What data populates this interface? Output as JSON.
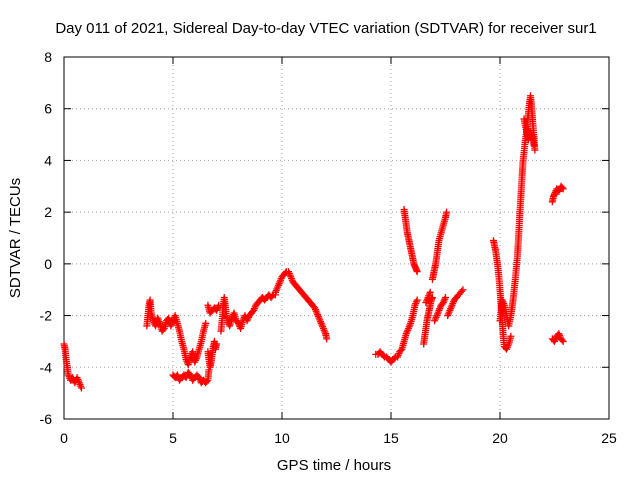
{
  "chart_data": {
    "type": "scatter",
    "title": "Day 011 of 2021, Sidereal Day-to-day VTEC variation (SDTVAR) for receiver sur1",
    "xlabel": "GPS time / hours",
    "ylabel": "SDTVAR / TECUs",
    "xlim": [
      0,
      25
    ],
    "ylim": [
      -6,
      8
    ],
    "xticks": [
      0,
      5,
      10,
      15,
      20,
      25
    ],
    "yticks": [
      -6,
      -4,
      -2,
      0,
      2,
      4,
      6,
      8
    ],
    "grid": true,
    "marker": "+",
    "series": [
      {
        "name": "SDTVAR",
        "color": "#ff0000",
        "segments": [
          [
            [
              0.0,
              -3.1
            ],
            [
              0.05,
              -3.3
            ],
            [
              0.1,
              -3.7
            ],
            [
              0.15,
              -4.0
            ],
            [
              0.2,
              -4.3
            ],
            [
              0.3,
              -4.5
            ],
            [
              0.4,
              -4.4
            ],
            [
              0.5,
              -4.6
            ],
            [
              0.6,
              -4.4
            ],
            [
              0.7,
              -4.6
            ],
            [
              0.8,
              -4.8
            ]
          ],
          [
            [
              3.8,
              -2.4
            ],
            [
              3.85,
              -2.0
            ],
            [
              3.9,
              -1.6
            ],
            [
              3.95,
              -1.4
            ],
            [
              4.0,
              -1.9
            ],
            [
              4.1,
              -2.2
            ],
            [
              4.2,
              -2.4
            ],
            [
              4.3,
              -2.1
            ],
            [
              4.4,
              -2.3
            ],
            [
              4.5,
              -2.6
            ],
            [
              4.6,
              -2.5
            ],
            [
              4.7,
              -2.2
            ],
            [
              4.8,
              -2.1
            ],
            [
              4.9,
              -2.4
            ],
            [
              5.0,
              -2.2
            ],
            [
              5.1,
              -2.0
            ],
            [
              5.2,
              -2.3
            ],
            [
              5.3,
              -2.6
            ],
            [
              5.4,
              -3.0
            ],
            [
              5.5,
              -3.3
            ],
            [
              5.6,
              -3.7
            ],
            [
              5.7,
              -3.9
            ],
            [
              5.8,
              -3.6
            ],
            [
              5.9,
              -3.4
            ],
            [
              6.0,
              -3.8
            ],
            [
              6.1,
              -3.6
            ],
            [
              6.2,
              -3.3
            ],
            [
              6.3,
              -3.0
            ],
            [
              6.4,
              -2.6
            ],
            [
              6.5,
              -2.3
            ]
          ],
          [
            [
              5.0,
              -4.3
            ],
            [
              5.1,
              -4.4
            ],
            [
              5.2,
              -4.3
            ],
            [
              5.3,
              -4.5
            ],
            [
              5.4,
              -4.4
            ],
            [
              5.5,
              -4.3
            ],
            [
              5.6,
              -4.4
            ],
            [
              5.7,
              -4.2
            ],
            [
              5.8,
              -4.3
            ],
            [
              5.9,
              -4.5
            ],
            [
              6.0,
              -4.4
            ],
            [
              6.1,
              -4.3
            ],
            [
              6.2,
              -4.4
            ],
            [
              6.3,
              -4.6
            ],
            [
              6.4,
              -4.5
            ],
            [
              6.5,
              -4.6
            ],
            [
              6.6,
              -4.5
            ],
            [
              6.65,
              -4.1
            ]
          ],
          [
            [
              6.6,
              -3.4
            ],
            [
              6.65,
              -3.7
            ],
            [
              6.7,
              -4.0
            ],
            [
              6.75,
              -3.8
            ],
            [
              6.8,
              -3.5
            ],
            [
              6.85,
              -3.2
            ],
            [
              6.9,
              -3.0
            ],
            [
              6.95,
              -3.3
            ],
            [
              7.0,
              -3.1
            ]
          ],
          [
            [
              6.6,
              -1.6
            ],
            [
              6.7,
              -1.9
            ],
            [
              6.8,
              -1.8
            ],
            [
              6.9,
              -1.7
            ],
            [
              7.0,
              -1.8
            ],
            [
              7.1,
              -1.6
            ]
          ],
          [
            [
              7.2,
              -2.6
            ],
            [
              7.25,
              -2.2
            ],
            [
              7.3,
              -1.7
            ],
            [
              7.35,
              -1.3
            ],
            [
              7.4,
              -1.6
            ],
            [
              7.45,
              -2.0
            ],
            [
              7.5,
              -2.2
            ],
            [
              7.6,
              -2.4
            ],
            [
              7.7,
              -2.1
            ],
            [
              7.8,
              -1.9
            ],
            [
              7.9,
              -2.2
            ],
            [
              8.0,
              -2.3
            ],
            [
              8.1,
              -2.5
            ],
            [
              8.2,
              -2.2
            ],
            [
              8.3,
              -2.0
            ],
            [
              8.4,
              -2.2
            ],
            [
              8.5,
              -2.0
            ],
            [
              8.6,
              -1.9
            ],
            [
              8.7,
              -1.8
            ],
            [
              8.8,
              -1.6
            ],
            [
              8.9,
              -1.5
            ],
            [
              9.0,
              -1.4
            ],
            [
              9.1,
              -1.3
            ],
            [
              9.2,
              -1.4
            ],
            [
              9.3,
              -1.3
            ],
            [
              9.4,
              -1.2
            ],
            [
              9.5,
              -1.3
            ],
            [
              9.6,
              -1.2
            ],
            [
              9.7,
              -1.2
            ]
          ],
          [
            [
              9.7,
              -1.1
            ],
            [
              9.8,
              -0.9
            ],
            [
              9.9,
              -0.7
            ],
            [
              10.0,
              -0.5
            ],
            [
              10.1,
              -0.4
            ],
            [
              10.2,
              -0.3
            ],
            [
              10.3,
              -0.3
            ],
            [
              10.4,
              -0.5
            ],
            [
              10.5,
              -0.7
            ],
            [
              10.6,
              -0.8
            ],
            [
              10.7,
              -0.9
            ],
            [
              10.8,
              -1.0
            ],
            [
              10.9,
              -1.1
            ],
            [
              11.0,
              -1.2
            ],
            [
              11.1,
              -1.3
            ],
            [
              11.2,
              -1.4
            ],
            [
              11.3,
              -1.5
            ],
            [
              11.4,
              -1.6
            ],
            [
              11.5,
              -1.7
            ],
            [
              11.6,
              -1.9
            ],
            [
              11.7,
              -2.1
            ],
            [
              11.8,
              -2.3
            ],
            [
              11.9,
              -2.5
            ],
            [
              12.0,
              -2.7
            ],
            [
              12.05,
              -2.9
            ]
          ],
          [
            [
              14.3,
              -3.5
            ],
            [
              14.4,
              -3.5
            ],
            [
              14.5,
              -3.4
            ],
            [
              14.6,
              -3.5
            ],
            [
              14.7,
              -3.6
            ],
            [
              14.8,
              -3.6
            ],
            [
              14.9,
              -3.7
            ],
            [
              15.0,
              -3.8
            ],
            [
              15.1,
              -3.7
            ],
            [
              15.2,
              -3.6
            ],
            [
              15.3,
              -3.6
            ],
            [
              15.4,
              -3.4
            ],
            [
              15.5,
              -3.3
            ],
            [
              15.6,
              -3.0
            ],
            [
              15.7,
              -2.7
            ],
            [
              15.8,
              -2.5
            ],
            [
              15.9,
              -2.3
            ],
            [
              16.0,
              -2.0
            ],
            [
              16.1,
              -1.6
            ],
            [
              16.2,
              -1.4
            ]
          ],
          [
            [
              15.6,
              2.1
            ],
            [
              15.65,
              1.8
            ],
            [
              15.7,
              1.5
            ],
            [
              15.75,
              1.2
            ],
            [
              15.8,
              1.0
            ],
            [
              15.85,
              0.8
            ],
            [
              15.9,
              0.6
            ],
            [
              15.95,
              0.4
            ],
            [
              16.0,
              0.2
            ],
            [
              16.05,
              0.0
            ],
            [
              16.1,
              -0.1
            ],
            [
              16.15,
              -0.2
            ],
            [
              16.2,
              -0.3
            ]
          ],
          [
            [
              16.5,
              -3.1
            ],
            [
              16.55,
              -2.8
            ],
            [
              16.6,
              -2.5
            ],
            [
              16.65,
              -2.2
            ],
            [
              16.7,
              -2.0
            ],
            [
              16.75,
              -1.8
            ],
            [
              16.8,
              -1.6
            ],
            [
              16.85,
              -1.4
            ],
            [
              16.9,
              -1.3
            ]
          ],
          [
            [
              16.6,
              -1.5
            ],
            [
              16.7,
              -1.3
            ],
            [
              16.8,
              -1.1
            ]
          ],
          [
            [
              16.9,
              -0.6
            ],
            [
              16.95,
              -0.4
            ],
            [
              17.0,
              -0.2
            ],
            [
              17.05,
              0.0
            ],
            [
              17.1,
              0.3
            ],
            [
              17.15,
              0.6
            ],
            [
              17.2,
              0.9
            ],
            [
              17.3,
              1.2
            ],
            [
              17.4,
              1.5
            ],
            [
              17.5,
              1.8
            ],
            [
              17.55,
              2.0
            ]
          ],
          [
            [
              17.0,
              -2.2
            ],
            [
              17.1,
              -2.0
            ],
            [
              17.2,
              -1.8
            ],
            [
              17.3,
              -1.6
            ],
            [
              17.4,
              -1.5
            ],
            [
              17.5,
              -1.3
            ]
          ],
          [
            [
              17.6,
              -2.0
            ],
            [
              17.7,
              -1.8
            ],
            [
              17.8,
              -1.6
            ],
            [
              17.9,
              -1.4
            ],
            [
              18.0,
              -1.3
            ],
            [
              18.3,
              -1.0
            ]
          ],
          [
            [
              19.7,
              0.9
            ],
            [
              19.75,
              0.7
            ],
            [
              19.8,
              0.5
            ],
            [
              19.85,
              0.2
            ],
            [
              19.9,
              -0.1
            ],
            [
              19.95,
              -0.5
            ],
            [
              20.0,
              -1.0
            ],
            [
              20.05,
              -1.6
            ],
            [
              20.1,
              -2.2
            ],
            [
              20.15,
              -2.8
            ],
            [
              20.2,
              -3.2
            ],
            [
              20.3,
              -3.3
            ],
            [
              20.4,
              -3.1
            ],
            [
              20.5,
              -2.8
            ]
          ],
          [
            [
              20.0,
              -2.2
            ],
            [
              20.05,
              -1.8
            ],
            [
              20.1,
              -1.4
            ],
            [
              20.2,
              -1.6
            ],
            [
              20.3,
              -2.0
            ],
            [
              20.4,
              -2.4
            ],
            [
              20.5,
              -2.0
            ],
            [
              20.6,
              -1.4
            ],
            [
              20.7,
              -0.6
            ],
            [
              20.8,
              0.3
            ],
            [
              20.85,
              1.0
            ],
            [
              20.9,
              1.8
            ],
            [
              20.95,
              2.5
            ],
            [
              21.0,
              3.2
            ],
            [
              21.05,
              3.9
            ],
            [
              21.1,
              4.3
            ],
            [
              21.15,
              4.7
            ],
            [
              21.2,
              5.0
            ],
            [
              21.25,
              5.4
            ],
            [
              21.3,
              5.8
            ],
            [
              21.35,
              6.2
            ],
            [
              21.4,
              6.5
            ],
            [
              21.45,
              6.1
            ],
            [
              21.5,
              5.5
            ],
            [
              21.55,
              5.0
            ],
            [
              21.6,
              4.4
            ]
          ],
          [
            [
              21.1,
              5.6
            ],
            [
              21.2,
              5.2
            ],
            [
              21.3,
              4.8
            ],
            [
              21.4,
              5.1
            ],
            [
              21.5,
              4.9
            ],
            [
              21.55,
              4.6
            ]
          ],
          [
            [
              22.4,
              2.4
            ],
            [
              22.45,
              2.6
            ],
            [
              22.5,
              2.7
            ],
            [
              22.6,
              2.9
            ],
            [
              22.7,
              2.8
            ],
            [
              22.8,
              3.0
            ],
            [
              22.9,
              2.9
            ]
          ],
          [
            [
              22.4,
              -2.9
            ],
            [
              22.5,
              -3.0
            ],
            [
              22.6,
              -2.8
            ],
            [
              22.7,
              -2.7
            ],
            [
              22.8,
              -2.9
            ],
            [
              22.9,
              -3.0
            ]
          ]
        ]
      }
    ]
  }
}
